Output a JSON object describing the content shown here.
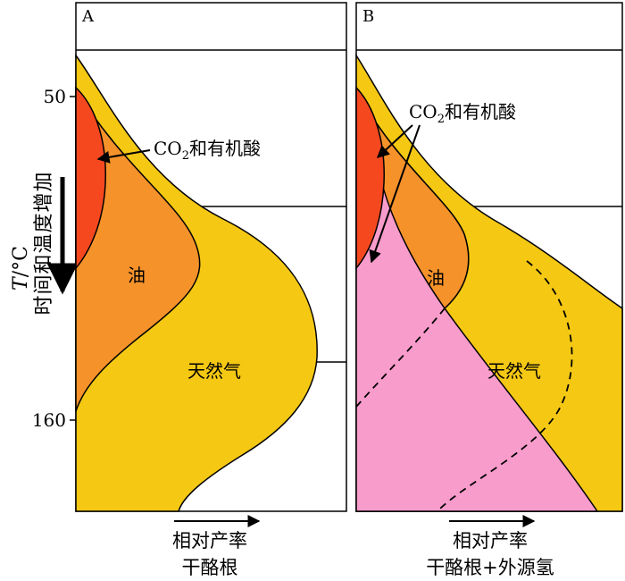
{
  "panels": [
    {
      "id": "A",
      "label": "A",
      "annotations": {
        "acids": "CO",
        "acids_sub": "2",
        "acids_suffix": "和有机酸",
        "oil": "油",
        "gas": "天然气"
      },
      "xlabel_line1": "相对产率",
      "xlabel_line2": "干酪根"
    },
    {
      "id": "B",
      "label": "B",
      "annotations": {
        "acids": "CO",
        "acids_sub": "2",
        "acids_suffix": "和有机酸",
        "oil": "油",
        "gas": "天然气"
      },
      "xlabel_line1": "相对产率",
      "xlabel_line2": "干酪根+外源氢"
    }
  ],
  "yaxis": {
    "label_T": "T",
    "label_unit": "/°C",
    "label_text": "时间和温度增加",
    "ticks": [
      "50",
      "160"
    ]
  },
  "colors": {
    "acids": "#f5481f",
    "oil": "#f5922a",
    "gas": "#f5c814",
    "hydrogen": "#f89ccb",
    "outline": "#000000"
  }
}
